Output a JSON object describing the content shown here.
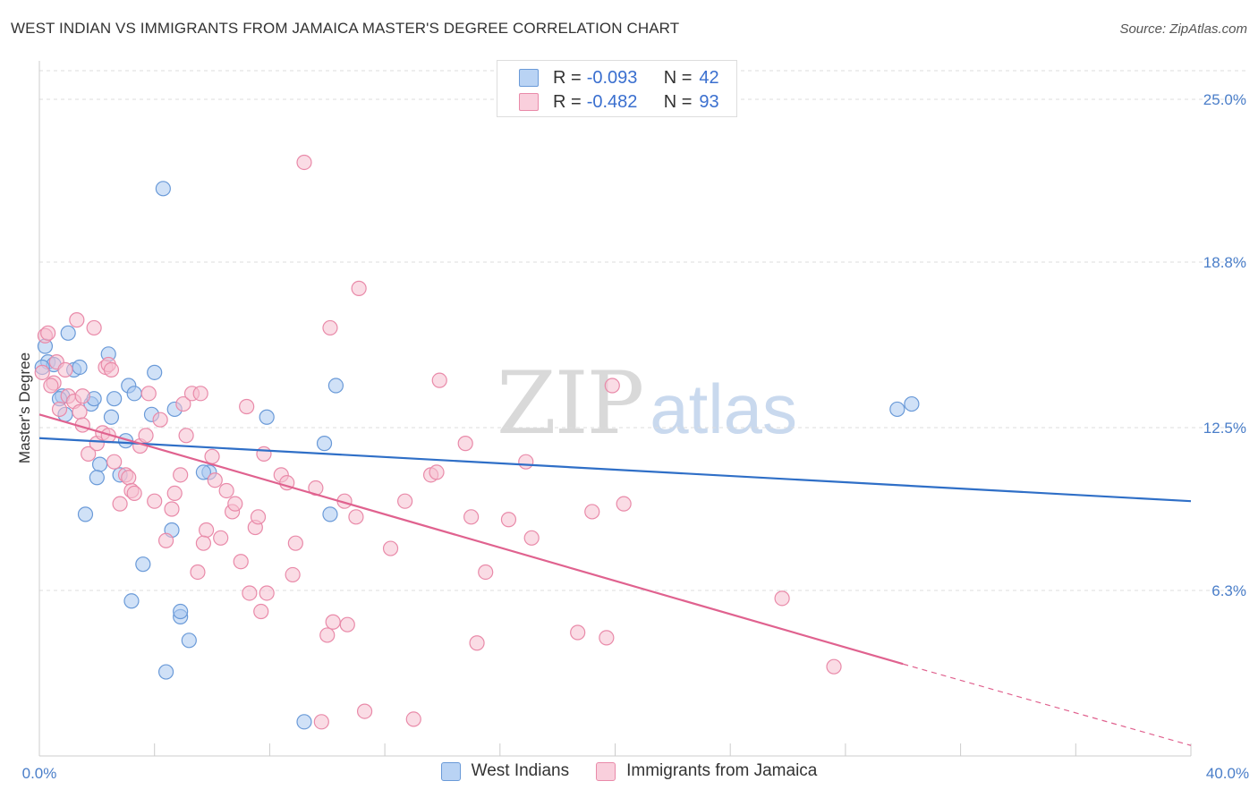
{
  "title": "WEST INDIAN VS IMMIGRANTS FROM JAMAICA MASTER'S DEGREE CORRELATION CHART",
  "source": "Source: ZipAtlas.com",
  "watermark": {
    "zip": "ZIP",
    "atlas": "atlas"
  },
  "legend_top": {
    "rows": [
      {
        "r_label": "R =",
        "r_value": "-0.093",
        "n_label": "N =",
        "n_value": "42"
      },
      {
        "r_label": "R =",
        "r_value": "-0.482",
        "n_label": "N =",
        "n_value": "93"
      }
    ]
  },
  "colors": {
    "blue_fill": "#a9c8f0",
    "blue_stroke": "#6a9ad8",
    "blue_line": "#2f6fc7",
    "pink_fill": "#f6bfd0",
    "pink_stroke": "#e98aa9",
    "pink_line": "#e0628f",
    "grid": "#dddddd",
    "axis": "#cccccc"
  },
  "chart_data": {
    "type": "scatter",
    "title": "WEST INDIAN VS IMMIGRANTS FROM JAMAICA MASTER'S DEGREE CORRELATION CHART",
    "xlabel": "",
    "ylabel": "Master's Degree",
    "xlim": [
      0,
      40
    ],
    "ylim": [
      0,
      25.0
    ],
    "x_tick_labels": [
      "0.0%",
      "40.0%"
    ],
    "y_ticks": [
      6.3,
      12.5,
      18.8,
      25.0
    ],
    "y_tick_labels": [
      "6.3%",
      "12.5%",
      "18.8%",
      "25.0%"
    ],
    "grid": "horizontal dashed",
    "legend_position": "top-center and bottom-center",
    "series": [
      {
        "name": "West Indians",
        "color": "#a9c8f0",
        "trend": {
          "x0": 0.0,
          "y0": 12.1,
          "x1": 40.0,
          "y1": 9.7
        },
        "points": [
          [
            0.2,
            15.6
          ],
          [
            0.3,
            15.0
          ],
          [
            0.5,
            14.9
          ],
          [
            0.8,
            13.7
          ],
          [
            0.7,
            13.6
          ],
          [
            0.9,
            13.0
          ],
          [
            1.0,
            16.1
          ],
          [
            1.2,
            14.7
          ],
          [
            1.4,
            14.8
          ],
          [
            1.8,
            13.4
          ],
          [
            1.9,
            13.6
          ],
          [
            2.1,
            11.1
          ],
          [
            2.0,
            10.6
          ],
          [
            1.6,
            9.2
          ],
          [
            2.4,
            15.3
          ],
          [
            2.5,
            12.9
          ],
          [
            2.6,
            13.6
          ],
          [
            2.8,
            10.7
          ],
          [
            3.0,
            12.0
          ],
          [
            3.1,
            14.1
          ],
          [
            3.3,
            13.8
          ],
          [
            3.2,
            5.9
          ],
          [
            3.6,
            7.3
          ],
          [
            3.9,
            13.0
          ],
          [
            4.0,
            14.6
          ],
          [
            4.3,
            21.6
          ],
          [
            4.6,
            8.6
          ],
          [
            4.7,
            13.2
          ],
          [
            4.9,
            5.3
          ],
          [
            4.9,
            5.5
          ],
          [
            5.2,
            4.4
          ],
          [
            4.4,
            3.2
          ],
          [
            5.9,
            10.8
          ],
          [
            5.7,
            10.8
          ],
          [
            7.9,
            12.9
          ],
          [
            9.9,
            11.9
          ],
          [
            10.3,
            14.1
          ],
          [
            10.1,
            9.2
          ],
          [
            9.2,
            1.3
          ],
          [
            29.8,
            13.2
          ],
          [
            30.3,
            13.4
          ],
          [
            0.1,
            14.8
          ]
        ]
      },
      {
        "name": "Immigrants from Jamaica",
        "color": "#f6bfd0",
        "trend": {
          "x0": 0.0,
          "y0": 13.0,
          "x1": 30.0,
          "y1": 3.5,
          "dash_to": {
            "x": 40.0,
            "y": 0.4
          }
        },
        "points": [
          [
            0.1,
            14.6
          ],
          [
            0.2,
            16.0
          ],
          [
            0.3,
            16.1
          ],
          [
            0.5,
            14.2
          ],
          [
            0.6,
            15.0
          ],
          [
            0.7,
            13.2
          ],
          [
            0.9,
            14.7
          ],
          [
            1.0,
            13.7
          ],
          [
            1.2,
            13.5
          ],
          [
            1.3,
            16.6
          ],
          [
            1.4,
            13.1
          ],
          [
            1.5,
            12.6
          ],
          [
            1.7,
            11.5
          ],
          [
            1.9,
            16.3
          ],
          [
            2.0,
            11.9
          ],
          [
            2.2,
            12.3
          ],
          [
            2.3,
            14.8
          ],
          [
            2.4,
            14.9
          ],
          [
            2.5,
            14.7
          ],
          [
            2.6,
            11.2
          ],
          [
            2.8,
            9.6
          ],
          [
            3.0,
            10.7
          ],
          [
            3.1,
            10.6
          ],
          [
            3.2,
            10.1
          ],
          [
            3.3,
            10.0
          ],
          [
            3.5,
            11.8
          ],
          [
            3.7,
            12.2
          ],
          [
            3.8,
            13.8
          ],
          [
            4.0,
            9.7
          ],
          [
            4.2,
            12.8
          ],
          [
            4.4,
            8.2
          ],
          [
            4.6,
            9.4
          ],
          [
            4.7,
            10.0
          ],
          [
            4.9,
            10.7
          ],
          [
            5.0,
            13.4
          ],
          [
            5.1,
            12.2
          ],
          [
            5.3,
            13.8
          ],
          [
            5.5,
            7.0
          ],
          [
            5.6,
            13.8
          ],
          [
            5.8,
            8.6
          ],
          [
            5.7,
            8.1
          ],
          [
            6.0,
            11.4
          ],
          [
            6.1,
            10.5
          ],
          [
            6.3,
            8.3
          ],
          [
            6.5,
            10.1
          ],
          [
            6.7,
            9.3
          ],
          [
            6.8,
            9.6
          ],
          [
            7.0,
            7.4
          ],
          [
            7.2,
            13.3
          ],
          [
            7.3,
            6.2
          ],
          [
            7.5,
            8.7
          ],
          [
            7.6,
            9.1
          ],
          [
            7.7,
            5.5
          ],
          [
            7.9,
            6.2
          ],
          [
            7.8,
            11.5
          ],
          [
            8.4,
            10.7
          ],
          [
            8.6,
            10.4
          ],
          [
            8.8,
            6.9
          ],
          [
            8.9,
            8.1
          ],
          [
            9.2,
            22.6
          ],
          [
            9.6,
            10.2
          ],
          [
            9.8,
            1.3
          ],
          [
            10.0,
            4.6
          ],
          [
            10.2,
            5.1
          ],
          [
            10.6,
            9.7
          ],
          [
            10.7,
            5.0
          ],
          [
            11.0,
            9.1
          ],
          [
            11.1,
            17.8
          ],
          [
            11.3,
            1.7
          ],
          [
            12.2,
            7.9
          ],
          [
            12.7,
            9.7
          ],
          [
            13.0,
            1.4
          ],
          [
            13.6,
            10.7
          ],
          [
            13.8,
            10.8
          ],
          [
            13.9,
            14.3
          ],
          [
            14.8,
            11.9
          ],
          [
            15.0,
            9.1
          ],
          [
            15.5,
            7.0
          ],
          [
            16.3,
            9.0
          ],
          [
            16.9,
            11.2
          ],
          [
            17.1,
            8.3
          ],
          [
            10.1,
            16.3
          ],
          [
            18.7,
            4.7
          ],
          [
            19.2,
            9.3
          ],
          [
            19.7,
            4.5
          ],
          [
            19.9,
            14.1
          ],
          [
            20.3,
            9.6
          ],
          [
            15.2,
            4.3
          ],
          [
            25.8,
            6.0
          ],
          [
            27.6,
            3.4
          ],
          [
            0.4,
            14.1
          ],
          [
            2.4,
            12.2
          ],
          [
            1.5,
            13.7
          ]
        ]
      }
    ]
  },
  "legend_bottom": [
    "West Indians",
    "Immigrants from Jamaica"
  ]
}
